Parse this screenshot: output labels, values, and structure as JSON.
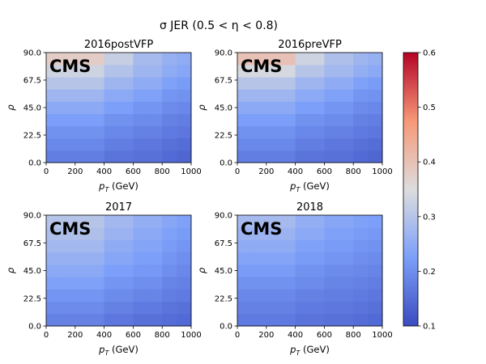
{
  "chart_data": {
    "type": "heatmap",
    "title": "σ JER (0.5 < η < 0.8)",
    "colormap": "coolwarm",
    "clim": [
      0.1,
      0.6
    ],
    "colorbar_ticks": [
      "0.1",
      "0.2",
      "0.3",
      "0.4",
      "0.5",
      "0.6"
    ],
    "x_edges": [
      0,
      100,
      200,
      300,
      400,
      500,
      600,
      700,
      800,
      900,
      1000
    ],
    "y_edges": [
      0,
      10,
      20,
      30,
      40,
      50,
      60,
      70,
      80,
      90
    ],
    "x_ticks": [
      "0",
      "200",
      "400",
      "600",
      "800",
      "1000"
    ],
    "y_ticks": [
      "0.0",
      "22.5",
      "45.0",
      "67.5",
      "90.0"
    ],
    "xlabel_main": "p",
    "xlabel_sub": "T",
    "xlabel_unit": " (GeV)",
    "ylabel": "ρ",
    "panels": [
      {
        "title": "2016postVFP",
        "label": "CMS",
        "z": [
          [
            0.175,
            0.175,
            0.175,
            0.175,
            0.16,
            0.16,
            0.155,
            0.155,
            0.145,
            0.14
          ],
          [
            0.19,
            0.19,
            0.19,
            0.19,
            0.175,
            0.175,
            0.165,
            0.165,
            0.155,
            0.15
          ],
          [
            0.205,
            0.205,
            0.205,
            0.205,
            0.19,
            0.19,
            0.18,
            0.18,
            0.17,
            0.165
          ],
          [
            0.225,
            0.225,
            0.225,
            0.225,
            0.205,
            0.205,
            0.195,
            0.195,
            0.18,
            0.175
          ],
          [
            0.245,
            0.245,
            0.245,
            0.245,
            0.225,
            0.225,
            0.21,
            0.21,
            0.195,
            0.19
          ],
          [
            0.27,
            0.27,
            0.27,
            0.27,
            0.245,
            0.245,
            0.23,
            0.23,
            0.21,
            0.205
          ],
          [
            0.3,
            0.3,
            0.3,
            0.3,
            0.27,
            0.27,
            0.25,
            0.25,
            0.23,
            0.22
          ],
          [
            0.33,
            0.33,
            0.33,
            0.33,
            0.295,
            0.295,
            0.27,
            0.27,
            0.25,
            0.24
          ],
          [
            0.38,
            0.38,
            0.38,
            0.38,
            0.32,
            0.32,
            0.28,
            0.28,
            0.26,
            0.25
          ]
        ]
      },
      {
        "title": "2016preVFP",
        "label": "CMS",
        "z": [
          [
            0.175,
            0.175,
            0.175,
            0.175,
            0.16,
            0.16,
            0.155,
            0.155,
            0.145,
            0.14
          ],
          [
            0.19,
            0.19,
            0.19,
            0.19,
            0.175,
            0.175,
            0.165,
            0.165,
            0.155,
            0.15
          ],
          [
            0.205,
            0.205,
            0.205,
            0.205,
            0.19,
            0.19,
            0.18,
            0.18,
            0.17,
            0.165
          ],
          [
            0.225,
            0.225,
            0.225,
            0.225,
            0.205,
            0.205,
            0.195,
            0.195,
            0.18,
            0.175
          ],
          [
            0.245,
            0.245,
            0.245,
            0.245,
            0.225,
            0.225,
            0.21,
            0.21,
            0.195,
            0.19
          ],
          [
            0.27,
            0.27,
            0.27,
            0.27,
            0.245,
            0.245,
            0.23,
            0.23,
            0.21,
            0.205
          ],
          [
            0.3,
            0.3,
            0.3,
            0.3,
            0.27,
            0.27,
            0.25,
            0.25,
            0.23,
            0.22
          ],
          [
            0.34,
            0.34,
            0.34,
            0.34,
            0.3,
            0.3,
            0.275,
            0.275,
            0.255,
            0.245
          ],
          [
            0.4,
            0.4,
            0.4,
            0.4,
            0.33,
            0.33,
            0.29,
            0.29,
            0.27,
            0.26
          ]
        ]
      },
      {
        "title": "2017",
        "label": "CMS",
        "z": [
          [
            0.18,
            0.18,
            0.18,
            0.18,
            0.165,
            0.165,
            0.155,
            0.155,
            0.15,
            0.145
          ],
          [
            0.195,
            0.195,
            0.195,
            0.195,
            0.18,
            0.18,
            0.17,
            0.17,
            0.16,
            0.155
          ],
          [
            0.21,
            0.21,
            0.21,
            0.21,
            0.195,
            0.195,
            0.185,
            0.185,
            0.175,
            0.17
          ],
          [
            0.23,
            0.23,
            0.23,
            0.23,
            0.21,
            0.21,
            0.2,
            0.2,
            0.185,
            0.18
          ],
          [
            0.245,
            0.245,
            0.245,
            0.245,
            0.225,
            0.225,
            0.215,
            0.215,
            0.2,
            0.19
          ],
          [
            0.26,
            0.26,
            0.26,
            0.26,
            0.24,
            0.24,
            0.225,
            0.225,
            0.21,
            0.2
          ],
          [
            0.275,
            0.275,
            0.275,
            0.275,
            0.25,
            0.25,
            0.235,
            0.235,
            0.22,
            0.21
          ],
          [
            0.29,
            0.29,
            0.29,
            0.29,
            0.265,
            0.265,
            0.245,
            0.245,
            0.23,
            0.22
          ],
          [
            0.3,
            0.3,
            0.3,
            0.3,
            0.275,
            0.275,
            0.255,
            0.255,
            0.24,
            0.23
          ]
        ]
      },
      {
        "title": "2018",
        "label": "CMS",
        "z": [
          [
            0.17,
            0.17,
            0.17,
            0.17,
            0.16,
            0.16,
            0.155,
            0.155,
            0.15,
            0.145
          ],
          [
            0.18,
            0.18,
            0.18,
            0.18,
            0.17,
            0.17,
            0.165,
            0.165,
            0.16,
            0.155
          ],
          [
            0.19,
            0.19,
            0.19,
            0.19,
            0.18,
            0.18,
            0.175,
            0.175,
            0.17,
            0.165
          ],
          [
            0.205,
            0.205,
            0.205,
            0.205,
            0.195,
            0.195,
            0.185,
            0.185,
            0.18,
            0.175
          ],
          [
            0.22,
            0.22,
            0.22,
            0.22,
            0.205,
            0.205,
            0.195,
            0.195,
            0.19,
            0.185
          ],
          [
            0.235,
            0.235,
            0.235,
            0.235,
            0.22,
            0.22,
            0.21,
            0.21,
            0.2,
            0.195
          ],
          [
            0.25,
            0.25,
            0.25,
            0.25,
            0.23,
            0.23,
            0.22,
            0.22,
            0.21,
            0.205
          ],
          [
            0.265,
            0.265,
            0.265,
            0.265,
            0.245,
            0.245,
            0.23,
            0.23,
            0.22,
            0.215
          ],
          [
            0.28,
            0.28,
            0.28,
            0.28,
            0.255,
            0.255,
            0.24,
            0.24,
            0.23,
            0.225
          ]
        ]
      }
    ]
  }
}
